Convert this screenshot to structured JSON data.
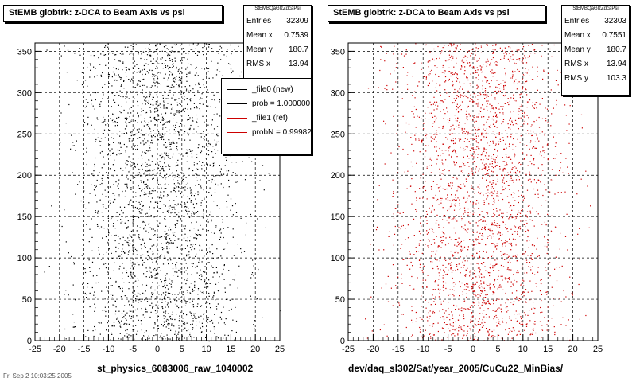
{
  "chart_data": [
    {
      "type": "scatter",
      "title": "StEMB globtrk: z-DCA to Beam Axis vs psi",
      "xlabel": "st_physics_6083006_raw_1040002",
      "ylabel": "",
      "xlim": [
        -25,
        25
      ],
      "ylim": [
        0,
        360
      ],
      "x_ticks": [
        -25,
        -20,
        -15,
        -10,
        -5,
        0,
        5,
        10,
        15,
        20,
        25
      ],
      "y_ticks": [
        0,
        50,
        100,
        150,
        200,
        250,
        300,
        350
      ],
      "grid": true,
      "marker_color": "#000000",
      "stats": {
        "name": "StEMBQaGlzZdcaPsi",
        "rows": [
          {
            "label": "Entries",
            "value": "32309"
          },
          {
            "label": "Mean x",
            "value": "0.7539"
          },
          {
            "label": "Mean y",
            "value": "180.7"
          },
          {
            "label": "RMS x",
            "value": "13.94"
          }
        ]
      },
      "legend": {
        "placement": "top-right",
        "entries": [
          {
            "label": "_file0 (new)",
            "color": "#000000"
          },
          {
            "label": "prob = 1.000000",
            "color": "#000000"
          },
          {
            "label": "_file1 (ref)",
            "color": "#cc0000"
          },
          {
            "label": "probN = 0.999825",
            "color": "#cc0000"
          }
        ]
      }
    },
    {
      "type": "scatter",
      "title": "StEMB globtrk: z-DCA to Beam Axis vs psi",
      "xlabel": "dev/daq_sl302/Sat/year_2005/CuCu22_MinBias/",
      "ylabel": "",
      "xlim": [
        -25,
        25
      ],
      "ylim": [
        0,
        360
      ],
      "x_ticks": [
        -25,
        -20,
        -15,
        -10,
        -5,
        0,
        5,
        10,
        15,
        20,
        25
      ],
      "y_ticks": [
        0,
        50,
        100,
        150,
        200,
        250,
        300,
        350
      ],
      "grid": true,
      "marker_color": "#cc0000",
      "stats": {
        "name": "StEMBQaGlzZdcaPsi",
        "rows": [
          {
            "label": "Entries",
            "value": "32303"
          },
          {
            "label": "Mean x",
            "value": "0.7551"
          },
          {
            "label": "Mean y",
            "value": "180.7"
          },
          {
            "label": "RMS x",
            "value": "13.94"
          },
          {
            "label": "RMS y",
            "value": "103.3"
          }
        ]
      }
    }
  ],
  "footer": "Fri Sep 2 10:03:25 2005",
  "colors": {
    "background": "#ffffff",
    "frame": "#000000",
    "ref_points": "#cc0000"
  }
}
